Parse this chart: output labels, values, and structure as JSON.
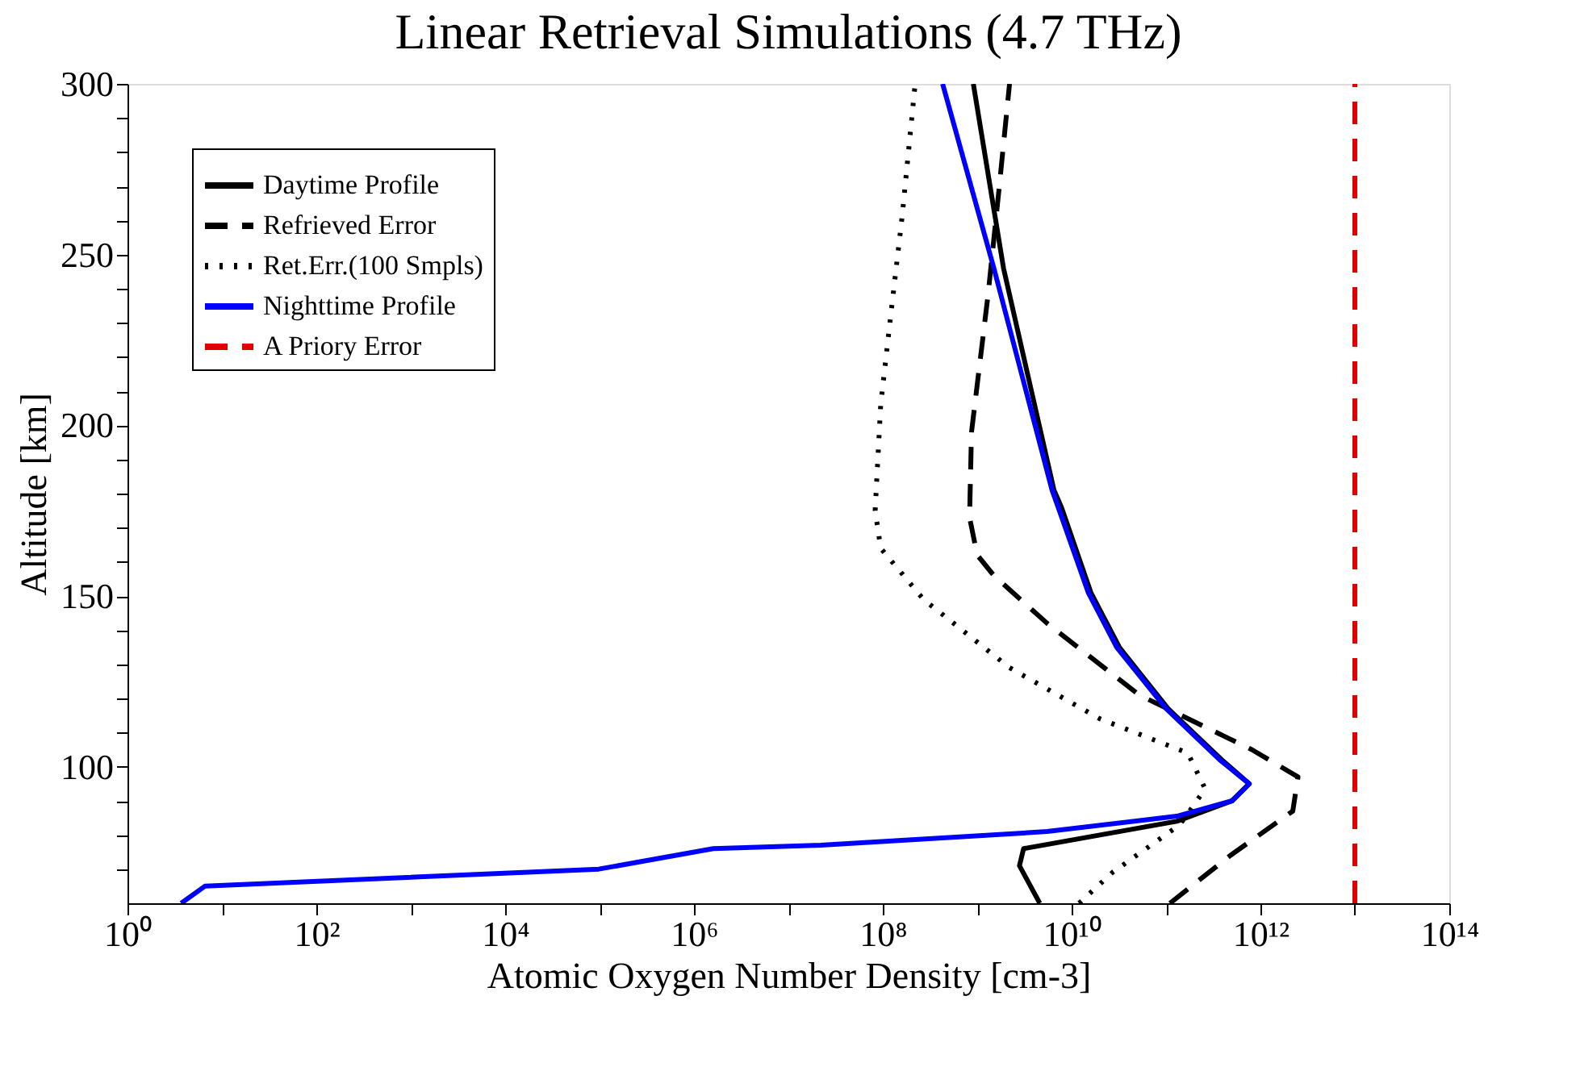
{
  "chart_data": {
    "type": "line",
    "title": "Linear Retrieval Simulations (4.7 THz)",
    "xlabel": "Atomic Oxygen Number Density [cm-3]",
    "ylabel": "Altitude [km]",
    "log": "x",
    "grid": false,
    "legend": "top left",
    "marker": "none",
    "xlim": [
      1,
      100000000000000.0
    ],
    "ylim": [
      60,
      300
    ],
    "xticks": [
      {
        "value": 1,
        "label": "10⁰"
      },
      {
        "value": 10,
        "label": null
      },
      {
        "value": 100,
        "label": "10²"
      },
      {
        "value": 1000,
        "label": null
      },
      {
        "value": 10000.0,
        "label": "10⁴"
      },
      {
        "value": 100000.0,
        "label": null
      },
      {
        "value": 1000000.0,
        "label": "10⁶"
      },
      {
        "value": 10000000.0,
        "label": null
      },
      {
        "value": 100000000.0,
        "label": "10⁸"
      },
      {
        "value": 1000000000.0,
        "label": null
      },
      {
        "value": 10000000000.0,
        "label": "10¹⁰"
      },
      {
        "value": 100000000000.0,
        "label": null
      },
      {
        "value": 1000000000000.0,
        "label": "10¹²"
      },
      {
        "value": 10000000000000.0,
        "label": null
      },
      {
        "value": 100000000000000.0,
        "label": "10¹⁴"
      }
    ],
    "yticks": [
      {
        "value": 70,
        "label": null
      },
      {
        "value": 80,
        "label": null
      },
      {
        "value": 90,
        "label": null
      },
      100,
      {
        "value": 110,
        "label": null
      },
      {
        "value": 120,
        "label": null
      },
      {
        "value": 130,
        "label": null
      },
      {
        "value": 140,
        "label": null
      },
      150,
      {
        "value": 160,
        "label": null
      },
      {
        "value": 170,
        "label": null
      },
      {
        "value": 180,
        "label": null
      },
      {
        "value": 190,
        "label": null
      },
      200,
      {
        "value": 210,
        "label": null
      },
      {
        "value": 220,
        "label": null
      },
      {
        "value": 230,
        "label": null
      },
      {
        "value": 240,
        "label": null
      },
      250,
      {
        "value": 260,
        "label": null
      },
      {
        "value": 270,
        "label": null
      },
      {
        "value": 280,
        "label": null
      },
      {
        "value": 290,
        "label": null
      },
      300
    ],
    "series": [
      {
        "name": "Daytime Profile",
        "color": "#000000",
        "line_style": "solid",
        "x": [
          4600000000.0,
          2800000000.0,
          3100000000.0,
          130000000000.0,
          500000000000.0,
          760000000000.0,
          390000000000.0,
          105000000000.0,
          32000000000.0,
          16000000000.0,
          7800000000.0,
          6500000000.0,
          1900000000.0,
          910000000.0
        ],
        "values": [
          60,
          71,
          76,
          84,
          90,
          95,
          102,
          117,
          135,
          151,
          176,
          181,
          246,
          300
        ]
      },
      {
        "name": "Refrieved Error",
        "color": "#000000",
        "line_style": "dashed",
        "x": [
          110000000000.0,
          480000000000.0,
          2200000000000.0,
          2500000000000.0,
          810000000000.0,
          52000000000.0,
          5500000000.0,
          1500000000.0,
          1000000000.0,
          830000000.0,
          870000000.0,
          1300000000.0,
          1700000000.0,
          2200000000.0
        ],
        "values": [
          60,
          74,
          87,
          97,
          105,
          121,
          142,
          156,
          162,
          173,
          198,
          238,
          269,
          300
        ]
      },
      {
        "name": "Ret.Err.(100 Smpls)",
        "color": "#000000",
        "line_style": "dotted",
        "x": [
          12000000000.0,
          27000000000.0,
          140000000000.0,
          260000000000.0,
          170000000000.0,
          20000000000.0,
          2200000000.0,
          270000000.0,
          95000000.0,
          83000000.0,
          95000000.0,
          120000000.0,
          160000000.0,
          220000000.0
        ],
        "values": [
          60,
          69,
          83,
          93.5,
          104,
          114,
          129,
          149,
          164,
          175,
          206,
          231,
          261,
          300
        ]
      },
      {
        "name": "Nighttime Profile",
        "color": "#0000ff",
        "line_style": "solid",
        "x": [
          3.7,
          6.6,
          98000.0,
          1600000.0,
          22000000.0,
          5500000000.0,
          130000000000.0,
          500000000000.0,
          760000000000.0,
          370000000000.0,
          100000000000.0,
          30000000000.0,
          15000000000.0,
          7200000000.0,
          6200000000.0,
          1500000000.0,
          430000000.0
        ],
        "values": [
          60,
          65,
          70,
          76,
          77,
          81,
          85.5,
          90,
          95,
          102,
          117,
          135,
          151,
          176,
          181,
          246,
          300
        ]
      },
      {
        "name": "A Priory Error",
        "color": "#e00000",
        "line_style": "dashed",
        "x": [
          10000000000000.0,
          10000000000000.0
        ],
        "values": [
          60,
          300
        ]
      }
    ]
  }
}
